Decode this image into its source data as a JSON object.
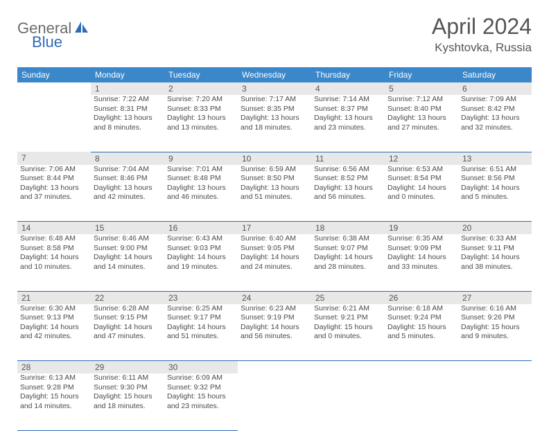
{
  "logo": {
    "part1": "General",
    "part2": "Blue"
  },
  "title": "April 2024",
  "location": "Kyshtovka, Russia",
  "colors": {
    "header_bg": "#3a87c9",
    "header_text": "#ffffff",
    "daynum_bg": "#e8e8e8",
    "border": "#2d6bb5",
    "text": "#4a4a4a",
    "title_text": "#555555",
    "logo_gray": "#6b6b6b",
    "logo_blue": "#2d6bb5"
  },
  "weekdays": [
    "Sunday",
    "Monday",
    "Tuesday",
    "Wednesday",
    "Thursday",
    "Friday",
    "Saturday"
  ],
  "weeks": [
    {
      "days": [
        {
          "num": "",
          "lines": []
        },
        {
          "num": "1",
          "lines": [
            "Sunrise: 7:22 AM",
            "Sunset: 8:31 PM",
            "Daylight: 13 hours",
            "and 8 minutes."
          ]
        },
        {
          "num": "2",
          "lines": [
            "Sunrise: 7:20 AM",
            "Sunset: 8:33 PM",
            "Daylight: 13 hours",
            "and 13 minutes."
          ]
        },
        {
          "num": "3",
          "lines": [
            "Sunrise: 7:17 AM",
            "Sunset: 8:35 PM",
            "Daylight: 13 hours",
            "and 18 minutes."
          ]
        },
        {
          "num": "4",
          "lines": [
            "Sunrise: 7:14 AM",
            "Sunset: 8:37 PM",
            "Daylight: 13 hours",
            "and 23 minutes."
          ]
        },
        {
          "num": "5",
          "lines": [
            "Sunrise: 7:12 AM",
            "Sunset: 8:40 PM",
            "Daylight: 13 hours",
            "and 27 minutes."
          ]
        },
        {
          "num": "6",
          "lines": [
            "Sunrise: 7:09 AM",
            "Sunset: 8:42 PM",
            "Daylight: 13 hours",
            "and 32 minutes."
          ]
        }
      ]
    },
    {
      "days": [
        {
          "num": "7",
          "lines": [
            "Sunrise: 7:06 AM",
            "Sunset: 8:44 PM",
            "Daylight: 13 hours",
            "and 37 minutes."
          ]
        },
        {
          "num": "8",
          "lines": [
            "Sunrise: 7:04 AM",
            "Sunset: 8:46 PM",
            "Daylight: 13 hours",
            "and 42 minutes."
          ]
        },
        {
          "num": "9",
          "lines": [
            "Sunrise: 7:01 AM",
            "Sunset: 8:48 PM",
            "Daylight: 13 hours",
            "and 46 minutes."
          ]
        },
        {
          "num": "10",
          "lines": [
            "Sunrise: 6:59 AM",
            "Sunset: 8:50 PM",
            "Daylight: 13 hours",
            "and 51 minutes."
          ]
        },
        {
          "num": "11",
          "lines": [
            "Sunrise: 6:56 AM",
            "Sunset: 8:52 PM",
            "Daylight: 13 hours",
            "and 56 minutes."
          ]
        },
        {
          "num": "12",
          "lines": [
            "Sunrise: 6:53 AM",
            "Sunset: 8:54 PM",
            "Daylight: 14 hours",
            "and 0 minutes."
          ]
        },
        {
          "num": "13",
          "lines": [
            "Sunrise: 6:51 AM",
            "Sunset: 8:56 PM",
            "Daylight: 14 hours",
            "and 5 minutes."
          ]
        }
      ]
    },
    {
      "days": [
        {
          "num": "14",
          "lines": [
            "Sunrise: 6:48 AM",
            "Sunset: 8:58 PM",
            "Daylight: 14 hours",
            "and 10 minutes."
          ]
        },
        {
          "num": "15",
          "lines": [
            "Sunrise: 6:46 AM",
            "Sunset: 9:00 PM",
            "Daylight: 14 hours",
            "and 14 minutes."
          ]
        },
        {
          "num": "16",
          "lines": [
            "Sunrise: 6:43 AM",
            "Sunset: 9:03 PM",
            "Daylight: 14 hours",
            "and 19 minutes."
          ]
        },
        {
          "num": "17",
          "lines": [
            "Sunrise: 6:40 AM",
            "Sunset: 9:05 PM",
            "Daylight: 14 hours",
            "and 24 minutes."
          ]
        },
        {
          "num": "18",
          "lines": [
            "Sunrise: 6:38 AM",
            "Sunset: 9:07 PM",
            "Daylight: 14 hours",
            "and 28 minutes."
          ]
        },
        {
          "num": "19",
          "lines": [
            "Sunrise: 6:35 AM",
            "Sunset: 9:09 PM",
            "Daylight: 14 hours",
            "and 33 minutes."
          ]
        },
        {
          "num": "20",
          "lines": [
            "Sunrise: 6:33 AM",
            "Sunset: 9:11 PM",
            "Daylight: 14 hours",
            "and 38 minutes."
          ]
        }
      ]
    },
    {
      "days": [
        {
          "num": "21",
          "lines": [
            "Sunrise: 6:30 AM",
            "Sunset: 9:13 PM",
            "Daylight: 14 hours",
            "and 42 minutes."
          ]
        },
        {
          "num": "22",
          "lines": [
            "Sunrise: 6:28 AM",
            "Sunset: 9:15 PM",
            "Daylight: 14 hours",
            "and 47 minutes."
          ]
        },
        {
          "num": "23",
          "lines": [
            "Sunrise: 6:25 AM",
            "Sunset: 9:17 PM",
            "Daylight: 14 hours",
            "and 51 minutes."
          ]
        },
        {
          "num": "24",
          "lines": [
            "Sunrise: 6:23 AM",
            "Sunset: 9:19 PM",
            "Daylight: 14 hours",
            "and 56 minutes."
          ]
        },
        {
          "num": "25",
          "lines": [
            "Sunrise: 6:21 AM",
            "Sunset: 9:21 PM",
            "Daylight: 15 hours",
            "and 0 minutes."
          ]
        },
        {
          "num": "26",
          "lines": [
            "Sunrise: 6:18 AM",
            "Sunset: 9:24 PM",
            "Daylight: 15 hours",
            "and 5 minutes."
          ]
        },
        {
          "num": "27",
          "lines": [
            "Sunrise: 6:16 AM",
            "Sunset: 9:26 PM",
            "Daylight: 15 hours",
            "and 9 minutes."
          ]
        }
      ]
    },
    {
      "days": [
        {
          "num": "28",
          "lines": [
            "Sunrise: 6:13 AM",
            "Sunset: 9:28 PM",
            "Daylight: 15 hours",
            "and 14 minutes."
          ]
        },
        {
          "num": "29",
          "lines": [
            "Sunrise: 6:11 AM",
            "Sunset: 9:30 PM",
            "Daylight: 15 hours",
            "and 18 minutes."
          ]
        },
        {
          "num": "30",
          "lines": [
            "Sunrise: 6:09 AM",
            "Sunset: 9:32 PM",
            "Daylight: 15 hours",
            "and 23 minutes."
          ]
        },
        {
          "num": "",
          "lines": []
        },
        {
          "num": "",
          "lines": []
        },
        {
          "num": "",
          "lines": []
        },
        {
          "num": "",
          "lines": []
        }
      ]
    }
  ]
}
